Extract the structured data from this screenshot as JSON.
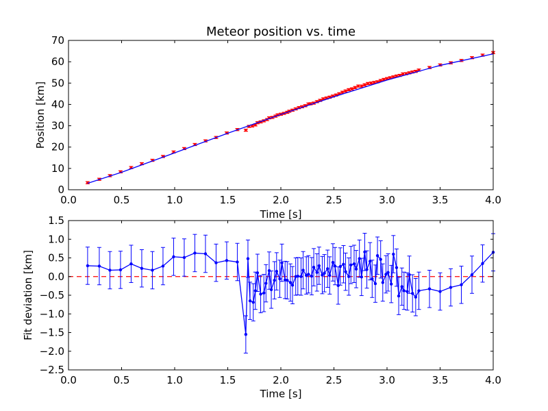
{
  "chart_data": [
    {
      "type": "scatter",
      "title": "Meteor position vs. time",
      "xlabel": "Time [s]",
      "ylabel": "Position [km]",
      "xlim": [
        0.0,
        4.0
      ],
      "ylim": [
        0,
        70
      ],
      "xticks": [
        "0.0",
        "0.5",
        "1.0",
        "1.5",
        "2.0",
        "2.5",
        "3.0",
        "3.5",
        "4.0"
      ],
      "yticks": [
        "0",
        "10",
        "20",
        "30",
        "40",
        "50",
        "60",
        "70"
      ],
      "grid": false,
      "series": [
        {
          "style": "red-points-with-error-bars",
          "color": "#ff0000",
          "x": [
            0.18,
            0.29,
            0.39,
            0.49,
            0.59,
            0.69,
            0.79,
            0.89,
            0.99,
            1.09,
            1.19,
            1.29,
            1.39,
            1.49,
            1.59,
            1.67,
            1.7,
            1.73,
            1.76,
            1.78,
            1.81,
            1.84,
            1.87,
            1.89,
            1.92,
            1.95,
            1.97,
            2.0,
            2.03,
            2.06,
            2.08,
            2.11,
            2.14,
            2.17,
            2.2,
            2.23,
            2.26,
            2.28,
            2.31,
            2.34,
            2.37,
            2.4,
            2.43,
            2.46,
            2.49,
            2.52,
            2.55,
            2.58,
            2.61,
            2.64,
            2.67,
            2.7,
            2.73,
            2.76,
            2.79,
            2.82,
            2.85,
            2.88,
            2.91,
            2.94,
            2.97,
            3.0,
            3.03,
            3.06,
            3.09,
            3.12,
            3.15,
            3.18,
            3.21,
            3.24,
            3.27,
            3.3,
            3.4,
            3.5,
            3.6,
            3.7,
            3.8,
            3.9,
            4.0
          ],
          "y": [
            3.3,
            4.9,
            6.6,
            8.4,
            10.4,
            12.2,
            13.8,
            15.6,
            17.7,
            19.3,
            21.2,
            22.9,
            24.5,
            26.6,
            28.2,
            27.9,
            29.7,
            29.9,
            30.4,
            31.4,
            31.8,
            32.3,
            32.9,
            33.7,
            33.9,
            34.5,
            35.1,
            35.4,
            35.8,
            36.3,
            36.8,
            37.3,
            37.9,
            38.5,
            38.9,
            39.4,
            40.2,
            40.3,
            40.6,
            41.3,
            41.9,
            42.6,
            43.0,
            43.4,
            43.9,
            44.4,
            45.0,
            45.7,
            46.3,
            46.9,
            47.3,
            47.9,
            48.6,
            48.6,
            49.2,
            49.8,
            50.0,
            50.3,
            50.6,
            51.2,
            51.7,
            52.1,
            52.5,
            52.9,
            53.3,
            53.6,
            54.3,
            54.4,
            54.8,
            55.2,
            55.5,
            56.1,
            57.3,
            58.5,
            59.5,
            60.6,
            61.9,
            63.1,
            64.3
          ],
          "yerr": 0.5
        },
        {
          "style": "fit-line",
          "color": "#0000ff",
          "x": [
            0.18,
            0.5,
            1.0,
            1.5,
            2.0,
            2.5,
            3.0,
            3.5,
            4.0
          ],
          "y": [
            3.0,
            8.2,
            17.3,
            26.5,
            35.3,
            43.6,
            51.4,
            58.3,
            63.7
          ]
        }
      ]
    },
    {
      "type": "line",
      "xlabel": "Time [s]",
      "ylabel": "Fit deviation [km]",
      "xlim": [
        0.0,
        4.0
      ],
      "ylim": [
        -2.5,
        1.5
      ],
      "xticks": [
        "0.0",
        "0.5",
        "1.0",
        "1.5",
        "2.0",
        "2.5",
        "3.0",
        "3.5",
        "4.0"
      ],
      "yticks": [
        "−2.5",
        "−2.0",
        "−1.5",
        "−1.0",
        "−0.5",
        "0.0",
        "0.5",
        "1.0",
        "1.5"
      ],
      "grid": false,
      "zero_line": {
        "y": 0.0,
        "color": "#ff0000",
        "style": "dashed"
      },
      "series": [
        {
          "style": "blue-line-with-error-bars",
          "color": "#0000ff",
          "x": [
            0.18,
            0.29,
            0.39,
            0.49,
            0.59,
            0.69,
            0.79,
            0.89,
            0.99,
            1.09,
            1.19,
            1.29,
            1.39,
            1.49,
            1.59,
            1.67,
            1.69,
            1.71,
            1.74,
            1.76,
            1.78,
            1.81,
            1.84,
            1.86,
            1.89,
            1.91,
            1.94,
            1.96,
            1.99,
            2.01,
            2.04,
            2.06,
            2.09,
            2.11,
            2.14,
            2.16,
            2.19,
            2.21,
            2.24,
            2.26,
            2.29,
            2.31,
            2.34,
            2.36,
            2.39,
            2.41,
            2.44,
            2.46,
            2.49,
            2.51,
            2.54,
            2.56,
            2.59,
            2.61,
            2.64,
            2.66,
            2.69,
            2.71,
            2.74,
            2.76,
            2.79,
            2.81,
            2.84,
            2.86,
            2.89,
            2.91,
            2.94,
            2.96,
            2.99,
            3.01,
            3.04,
            3.06,
            3.09,
            3.11,
            3.14,
            3.16,
            3.19,
            3.21,
            3.24,
            3.27,
            3.3,
            3.4,
            3.5,
            3.6,
            3.7,
            3.8,
            3.9,
            4.0
          ],
          "y": [
            0.29,
            0.28,
            0.17,
            0.18,
            0.34,
            0.22,
            0.17,
            0.28,
            0.53,
            0.51,
            0.63,
            0.61,
            0.37,
            0.43,
            0.39,
            -1.55,
            0.48,
            -0.65,
            -0.69,
            -0.38,
            0.1,
            -0.47,
            -0.44,
            -0.18,
            0.16,
            -0.35,
            -0.1,
            0.14,
            -0.06,
            0.37,
            -0.09,
            -0.1,
            -0.16,
            -0.23,
            0.0,
            0.01,
            0.0,
            0.17,
            0.03,
            0.06,
            0.01,
            0.25,
            0.11,
            0.29,
            0.04,
            0.09,
            0.21,
            0.03,
            0.38,
            0.28,
            -0.24,
            0.27,
            0.33,
            0.13,
            0.0,
            0.31,
            0.34,
            0.2,
            0.48,
            -0.01,
            0.66,
            0.19,
            0.41,
            -0.06,
            -0.19,
            0.56,
            0.46,
            -0.16,
            0.06,
            0.11,
            -0.2,
            0.6,
            0.24,
            -0.52,
            -0.27,
            -0.38,
            -0.4,
            0.05,
            -0.45,
            -0.55,
            -0.38,
            -0.33,
            -0.4,
            -0.29,
            -0.22,
            0.05,
            0.35,
            0.65
          ],
          "yerr": 0.5
        }
      ]
    }
  ]
}
